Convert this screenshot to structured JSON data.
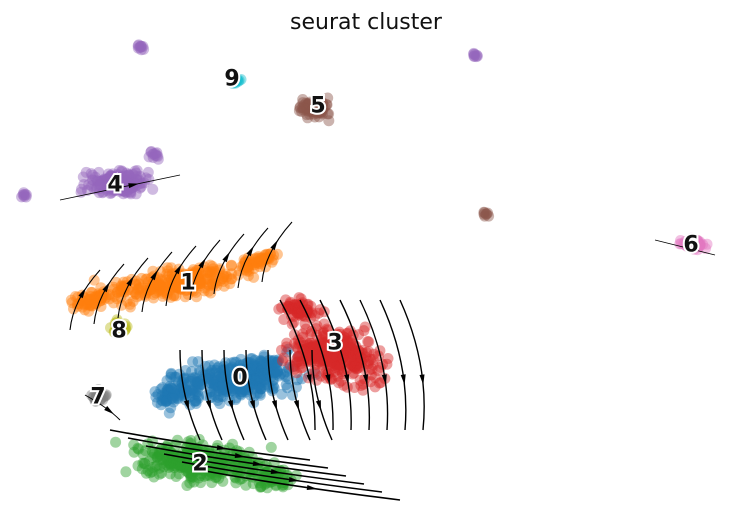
{
  "chart_data": {
    "type": "scatter",
    "title": "seurat cluster",
    "xlabel": "",
    "ylabel": "",
    "grid": false,
    "legend": "on data",
    "axes_visible": false,
    "overlay": "velocity streamlines (arrows)",
    "clusters": [
      {
        "label": "0",
        "color": "#1f77b4",
        "center": [
          240,
          378
        ]
      },
      {
        "label": "1",
        "color": "#ff7f0e",
        "center": [
          188,
          283
        ]
      },
      {
        "label": "2",
        "color": "#2ca02c",
        "center": [
          200,
          464
        ]
      },
      {
        "label": "3",
        "color": "#d62728",
        "center": [
          335,
          343
        ]
      },
      {
        "label": "4",
        "color": "#9467bd",
        "center": [
          115,
          185
        ]
      },
      {
        "label": "5",
        "color": "#8c564b",
        "center": [
          318,
          106
        ]
      },
      {
        "label": "6",
        "color": "#e377c2",
        "center": [
          691,
          245
        ]
      },
      {
        "label": "7",
        "color": "#7f7f7f",
        "center": [
          98,
          397
        ]
      },
      {
        "label": "8",
        "color": "#bcbd22",
        "center": [
          119,
          331
        ]
      },
      {
        "label": "9",
        "color": "#17becf",
        "center": [
          232,
          79
        ]
      }
    ]
  }
}
